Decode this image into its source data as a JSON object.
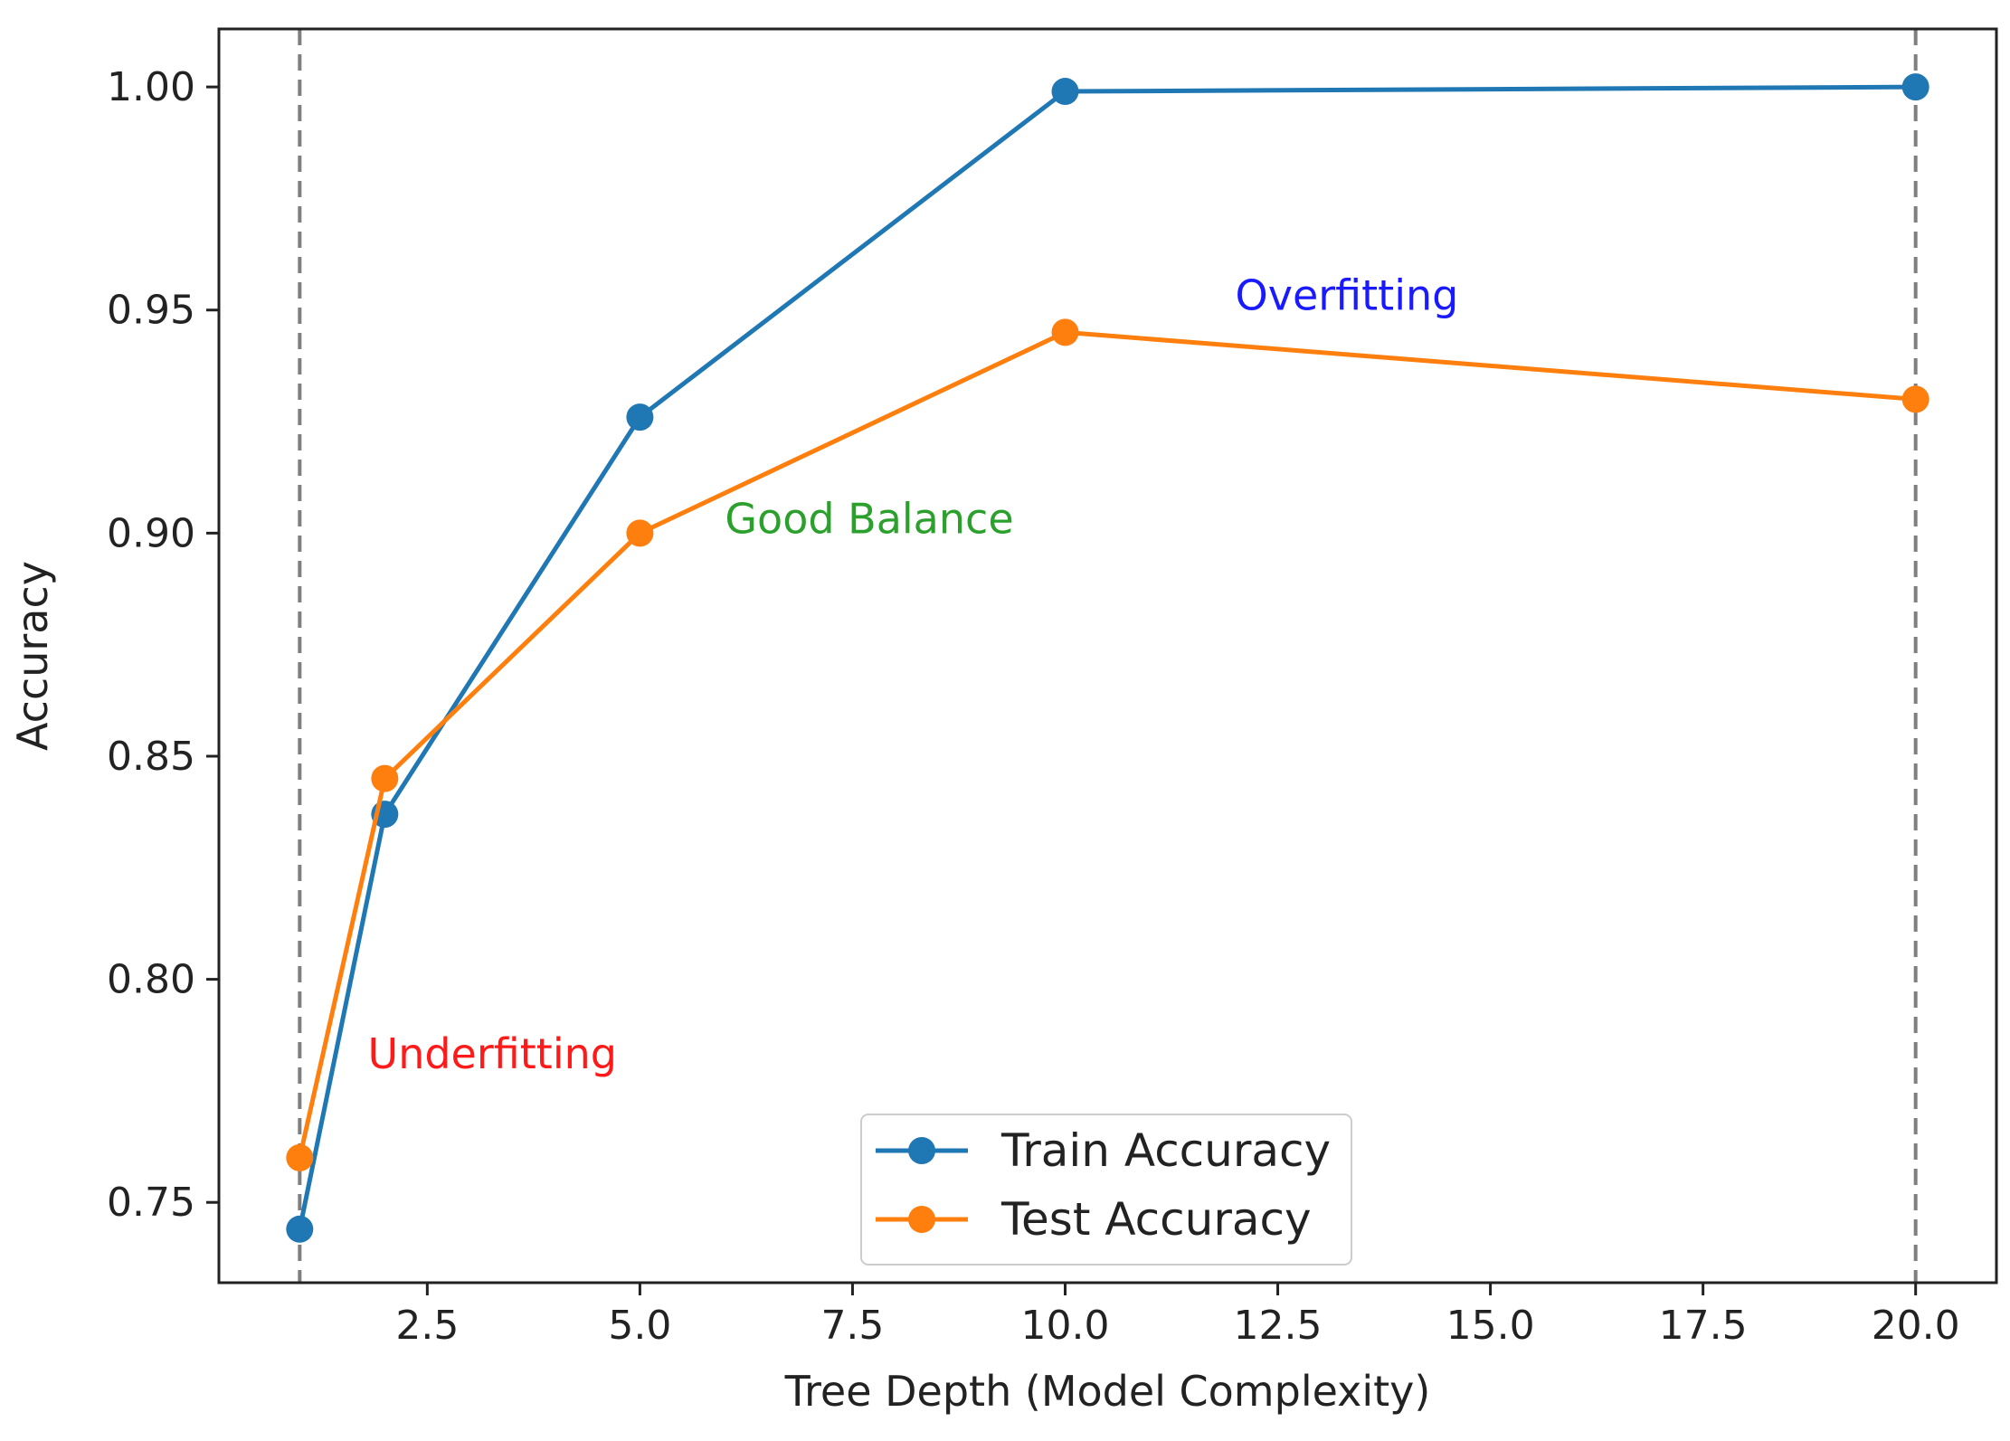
{
  "chart_data": {
    "type": "line",
    "title": "",
    "xlabel": "Tree Depth (Model Complexity)",
    "ylabel": "Accuracy",
    "xlim": [
      0.05,
      20.95
    ],
    "ylim": [
      0.732,
      1.013
    ],
    "x": [
      1,
      2,
      5,
      10,
      20
    ],
    "x_ticks": [
      2.5,
      5.0,
      7.5,
      10.0,
      12.5,
      15.0,
      17.5,
      20.0
    ],
    "x_tick_labels": [
      "2.5",
      "5.0",
      "7.5",
      "10.0",
      "12.5",
      "15.0",
      "17.5",
      "20.0"
    ],
    "y_ticks": [
      0.75,
      0.8,
      0.85,
      0.9,
      0.95,
      1.0
    ],
    "y_tick_labels": [
      "0.75",
      "0.80",
      "0.85",
      "0.90",
      "0.95",
      "1.00"
    ],
    "grid": false,
    "legend_position": "bottom-center",
    "series": [
      {
        "name": "Train Accuracy",
        "color": "#1f77b4",
        "values": [
          0.744,
          0.837,
          0.926,
          0.999,
          1.0
        ]
      },
      {
        "name": "Test Accuracy",
        "color": "#ff7f0e",
        "values": [
          0.76,
          0.845,
          0.9,
          0.945,
          0.93
        ]
      }
    ],
    "vlines": [
      {
        "x": 1,
        "style": "dashed",
        "color": "#7f7f7f"
      },
      {
        "x": 20,
        "style": "dashed",
        "color": "#7f7f7f"
      }
    ],
    "annotations": [
      {
        "text": "Underfitting",
        "x": 1.8,
        "y": 0.78,
        "color": "#ff1a1a"
      },
      {
        "text": "Good Balance",
        "x": 6.0,
        "y": 0.9,
        "color": "#2ca02c"
      },
      {
        "text": "Overfitting",
        "x": 12.0,
        "y": 0.95,
        "color": "#1a1aff"
      }
    ]
  }
}
